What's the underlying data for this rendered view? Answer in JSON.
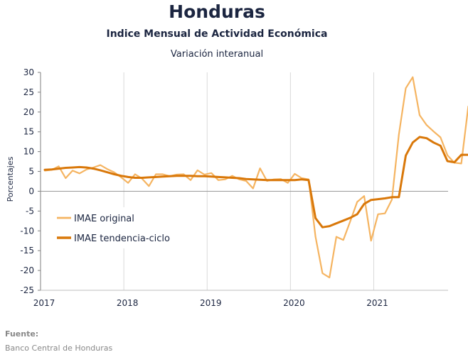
{
  "header": {
    "title": "Honduras",
    "subtitle": "Indice Mensual de  Actividad Económica",
    "subsubtitle": "Variación interanual"
  },
  "footer": {
    "source_label": "Fuente:",
    "source_text": "Banco Central de Honduras"
  },
  "chart_data": {
    "type": "line",
    "title": "Honduras",
    "ylabel": "Porcentajes",
    "xlabel": "",
    "ylim": [
      -25,
      30
    ],
    "yticks": [
      30,
      25,
      20,
      15,
      10,
      5,
      0,
      -5,
      -10,
      -15,
      -20,
      -25
    ],
    "xtick_labels": [
      "2017",
      "2018",
      "2019",
      "2020",
      "2021"
    ],
    "x_start": "2017-01",
    "grid": "vertical",
    "legend_position": "lower-left",
    "colors": {
      "original": "#f5b461",
      "trend": "#d9780a",
      "zero_line": "#999999",
      "grid": "#d9d9d9"
    },
    "series": [
      {
        "name": "IMAE original",
        "values": [
          5.2,
          5.4,
          6.3,
          3.3,
          5.2,
          4.5,
          5.5,
          6.0,
          6.6,
          5.6,
          4.8,
          3.5,
          2.1,
          4.3,
          3.2,
          1.3,
          4.3,
          4.3,
          3.8,
          4.2,
          4.3,
          2.8,
          5.3,
          4.2,
          4.6,
          2.8,
          3.0,
          3.9,
          3.0,
          2.6,
          0.7,
          5.8,
          2.6,
          3.0,
          3.1,
          2.1,
          4.4,
          3.3,
          3.0,
          -11.5,
          -20.7,
          -21.8,
          -11.5,
          -12.3,
          -7.6,
          -2.7,
          -1.2,
          -12.5,
          -5.8,
          -5.6,
          -2.1,
          14.3,
          26.0,
          28.8,
          19.2,
          16.7,
          15.1,
          13.6,
          9.1,
          7.2,
          7.0,
          21.4
        ]
      },
      {
        "name": "IMAE tendencia-ciclo",
        "values": [
          5.4,
          5.5,
          5.7,
          5.9,
          6.0,
          6.1,
          6.0,
          5.7,
          5.3,
          4.8,
          4.3,
          3.9,
          3.6,
          3.4,
          3.4,
          3.5,
          3.6,
          3.7,
          3.8,
          3.9,
          3.9,
          3.9,
          3.8,
          3.8,
          3.7,
          3.6,
          3.5,
          3.4,
          3.3,
          3.1,
          3.0,
          2.9,
          2.8,
          2.8,
          2.8,
          2.8,
          2.8,
          3.0,
          2.8,
          -6.8,
          -9.1,
          -8.8,
          -8.1,
          -7.4,
          -6.7,
          -5.8,
          -3.2,
          -2.2,
          -2.0,
          -1.8,
          -1.5,
          -1.5,
          9.0,
          12.3,
          13.7,
          13.4,
          12.3,
          11.5,
          7.6,
          7.3,
          9.2,
          9.2
        ]
      }
    ]
  }
}
